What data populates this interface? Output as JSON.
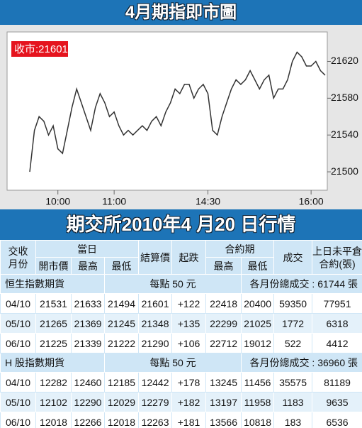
{
  "header": {
    "title": "4月期指即市圖"
  },
  "chart_data": {
    "type": "line",
    "close_label": "收市:21601",
    "categories": [
      null,
      null,
      null,
      null,
      null,
      null,
      "10:00",
      null,
      null,
      null,
      null,
      null,
      null,
      null,
      null,
      null,
      null,
      null,
      "11:00",
      null,
      null,
      null,
      null,
      null,
      null,
      null,
      null,
      null,
      null,
      null,
      null,
      null,
      null,
      null,
      null,
      null,
      null,
      null,
      "14:30",
      null,
      null,
      null,
      null,
      null,
      null,
      null,
      null,
      null,
      null,
      null,
      null,
      null,
      null,
      null,
      null,
      null,
      null,
      null,
      null,
      null,
      "16:00",
      null,
      null,
      null
    ],
    "values": [
      21500,
      21545,
      21560,
      21555,
      21540,
      21550,
      21525,
      21520,
      21545,
      21570,
      21590,
      21575,
      21560,
      21545,
      21570,
      21585,
      21575,
      21560,
      21565,
      21550,
      21540,
      21545,
      21540,
      21545,
      21550,
      21545,
      21555,
      21560,
      21550,
      21565,
      21575,
      21590,
      21585,
      21595,
      21595,
      21580,
      21590,
      21595,
      21585,
      21545,
      21540,
      21560,
      21575,
      21590,
      21600,
      21595,
      21600,
      21610,
      21600,
      21590,
      21600,
      21605,
      21580,
      21590,
      21590,
      21600,
      21620,
      21630,
      21625,
      21615,
      21615,
      21620,
      21610,
      21605
    ],
    "color": "#333333",
    "ylim": [
      21480,
      21652
    ],
    "yticks": [
      21500,
      21540,
      21580,
      21620
    ]
  },
  "subheader": {
    "title": "期交所2010年4 月20 日行情"
  },
  "table": {
    "header": {
      "top": [
        [
          "交收",
          "月份"
        ],
        [
          "當日"
        ],
        [
          "結算價"
        ],
        [
          "起跌"
        ],
        [
          "合約期"
        ],
        [
          "成交"
        ],
        [
          "上日未平倉",
          "合約(張)"
        ]
      ],
      "sub": [
        "開市價",
        "最高",
        "最低",
        "最高",
        "最低"
      ]
    },
    "sections": [
      {
        "title": "恒生指數期貨",
        "note": "每點 50 元",
        "total": "各月份總成交 : 61744 張",
        "rows": [
          [
            "04/10",
            "21531",
            "21633",
            "21494",
            "21601",
            "+122",
            "22418",
            "20400",
            "59350",
            "77951"
          ],
          [
            "05/10",
            "21265",
            "21369",
            "21245",
            "21348",
            "+135",
            "22299",
            "21025",
            "1772",
            "6318"
          ],
          [
            "06/10",
            "21225",
            "21339",
            "21222",
            "21290",
            "+106",
            "22712",
            "19012",
            "522",
            "4412"
          ]
        ]
      },
      {
        "title": "H 股指數期貨",
        "note": "每點 50 元",
        "total": "各月份總成交 : 36960 張",
        "rows": [
          [
            "04/10",
            "12282",
            "12460",
            "12185",
            "12442",
            "+178",
            "13245",
            "11456",
            "35575",
            "81189"
          ],
          [
            "05/10",
            "12102",
            "12290",
            "12029",
            "12279",
            "+182",
            "13197",
            "11958",
            "1183",
            "9635"
          ],
          [
            "06/10",
            "12018",
            "12266",
            "12018",
            "12263",
            "+181",
            "13566",
            "10818",
            "183",
            "6536"
          ]
        ]
      }
    ]
  }
}
